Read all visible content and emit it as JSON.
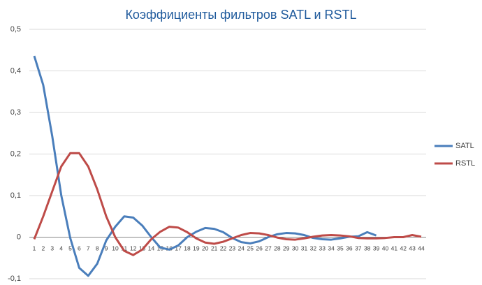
{
  "chart_data": {
    "type": "line",
    "title": "Коэффициенты фильтров SATL и RSTL",
    "categories": [
      "1",
      "2",
      "3",
      "4",
      "5",
      "6",
      "7",
      "8",
      "9",
      "10",
      "11",
      "12",
      "13",
      "14",
      "15",
      "16",
      "17",
      "18",
      "19",
      "20",
      "21",
      "22",
      "23",
      "24",
      "25",
      "26",
      "27",
      "28",
      "29",
      "30",
      "31",
      "32",
      "33",
      "34",
      "35",
      "36",
      "37",
      "38",
      "39",
      "40",
      "41",
      "42",
      "43",
      "44"
    ],
    "series": [
      {
        "name": "SATL",
        "color": "#4a7ebb",
        "values": [
          0.436,
          0.366,
          0.243,
          0.101,
          -0.002,
          -0.074,
          -0.093,
          -0.064,
          -0.008,
          0.025,
          0.05,
          0.047,
          0.028,
          0.0,
          -0.025,
          -0.03,
          -0.02,
          0.0,
          0.013,
          0.022,
          0.02,
          0.012,
          -0.002,
          -0.012,
          -0.015,
          -0.01,
          0.0,
          0.007,
          0.01,
          0.009,
          0.005,
          -0.002,
          -0.005,
          -0.006,
          -0.003,
          0.001,
          0.002,
          0.012,
          0.004,
          null,
          null,
          null,
          null,
          null
        ]
      },
      {
        "name": "RSTL",
        "color": "#be4b48",
        "values": [
          -0.005,
          0.05,
          0.11,
          0.17,
          0.202,
          0.202,
          0.17,
          0.115,
          0.05,
          0.0,
          -0.033,
          -0.043,
          -0.03,
          -0.005,
          0.013,
          0.025,
          0.023,
          0.012,
          -0.003,
          -0.013,
          -0.016,
          -0.011,
          -0.003,
          0.005,
          0.01,
          0.009,
          0.005,
          -0.001,
          -0.005,
          -0.006,
          -0.003,
          0.001,
          0.004,
          0.005,
          0.004,
          0.002,
          -0.002,
          -0.003,
          -0.003,
          -0.002,
          0.0,
          0.0,
          0.005,
          0.001
        ]
      }
    ],
    "ylim": [
      -0.1,
      0.5
    ],
    "yticks": [
      {
        "value": -0.1,
        "label": "-0,1"
      },
      0,
      {
        "value": 0.1,
        "label": "0,1"
      },
      {
        "value": 0.2,
        "label": "0,2"
      },
      {
        "value": 0.3,
        "label": "0,3"
      },
      {
        "value": 0.4,
        "label": "0,4"
      },
      {
        "value": 0.5,
        "label": "0,5"
      }
    ],
    "grid": true,
    "legend": "right"
  }
}
